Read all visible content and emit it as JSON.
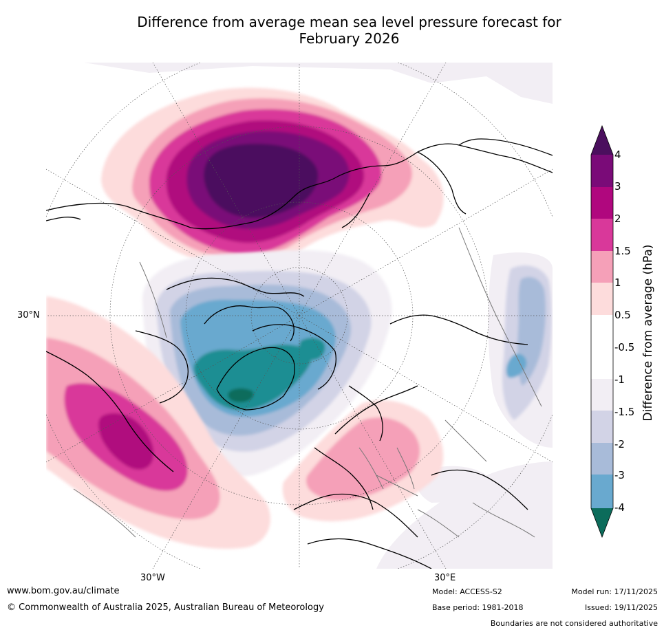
{
  "title_line1": "Difference from average mean sea level pressure forecast for",
  "title_line2": "February 2026",
  "map": {
    "projection": "north polar stereographic",
    "lat_label_left": "30°N",
    "lon_label_left": "30°W",
    "lon_label_right": "30°E"
  },
  "colorbar": {
    "title": "Difference from average (hPa)",
    "ticks": [
      "4",
      "3",
      "2",
      "1.5",
      "1",
      "0.5",
      "-0.5",
      "-1",
      "-1.5",
      "-2",
      "-3",
      "-4"
    ],
    "colors": {
      "gt4": "#4b0f5e",
      "c3_4": "#7a0b78",
      "c2_3": "#b0077e",
      "c15_2": "#d9389a",
      "c1_15": "#f5a0b8",
      "c05_1": "#fddcdc",
      "c0": "#ffffff",
      "cm05_m1": "#f2eef4",
      "cm1_m15": "#d2d3e6",
      "cm15_m2": "#a8bbd9",
      "cm2_m3": "#69a9cf",
      "cm3_m4": "#1b8e93",
      "ltm4": "#0c6c5b"
    }
  },
  "footer": {
    "website": "www.bom.gov.au/climate",
    "copyright": "© Commonwealth of Australia 2025, Australian Bureau of Meteorology",
    "model": "Model: ACCESS-S2",
    "base_period": "Base period: 1981-2018",
    "model_run": "Model run: 17/11/2025",
    "issued": "Issued: 19/11/2025",
    "disclaimer": "Boundaries are not considered authoritative"
  }
}
